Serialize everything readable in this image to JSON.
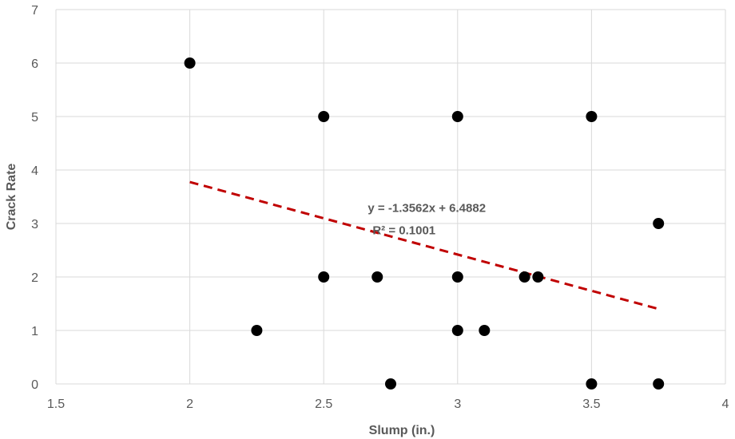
{
  "chart_data": {
    "type": "scatter",
    "title": "",
    "xlabel": "Slump (in.)",
    "ylabel": "Crack Rate",
    "xlim": [
      1.5,
      4
    ],
    "ylim": [
      0,
      7
    ],
    "x_ticks": [
      "1.5",
      "2",
      "2.5",
      "3",
      "3.5",
      "4"
    ],
    "y_ticks": [
      "0",
      "1",
      "2",
      "3",
      "4",
      "5",
      "6",
      "7"
    ],
    "grid": true,
    "legend": "none",
    "marker_color": "#000000",
    "trendline_color": "#C00000",
    "points": [
      {
        "x": 2.0,
        "y": 6
      },
      {
        "x": 2.25,
        "y": 1
      },
      {
        "x": 2.5,
        "y": 5
      },
      {
        "x": 2.5,
        "y": 2
      },
      {
        "x": 2.7,
        "y": 2
      },
      {
        "x": 2.75,
        "y": 0
      },
      {
        "x": 3.0,
        "y": 5
      },
      {
        "x": 3.0,
        "y": 2
      },
      {
        "x": 3.0,
        "y": 1
      },
      {
        "x": 3.1,
        "y": 1
      },
      {
        "x": 3.25,
        "y": 2
      },
      {
        "x": 3.3,
        "y": 2
      },
      {
        "x": 3.5,
        "y": 5
      },
      {
        "x": 3.5,
        "y": 0
      },
      {
        "x": 3.75,
        "y": 3
      },
      {
        "x": 3.75,
        "y": 0
      }
    ],
    "trendline": {
      "type": "linear",
      "slope": -1.3562,
      "intercept": 6.4882,
      "x_range": [
        2.0,
        3.75
      ],
      "equation": "y = -1.3562x + 6.4882",
      "r_squared": "R² = 0.1001"
    }
  }
}
